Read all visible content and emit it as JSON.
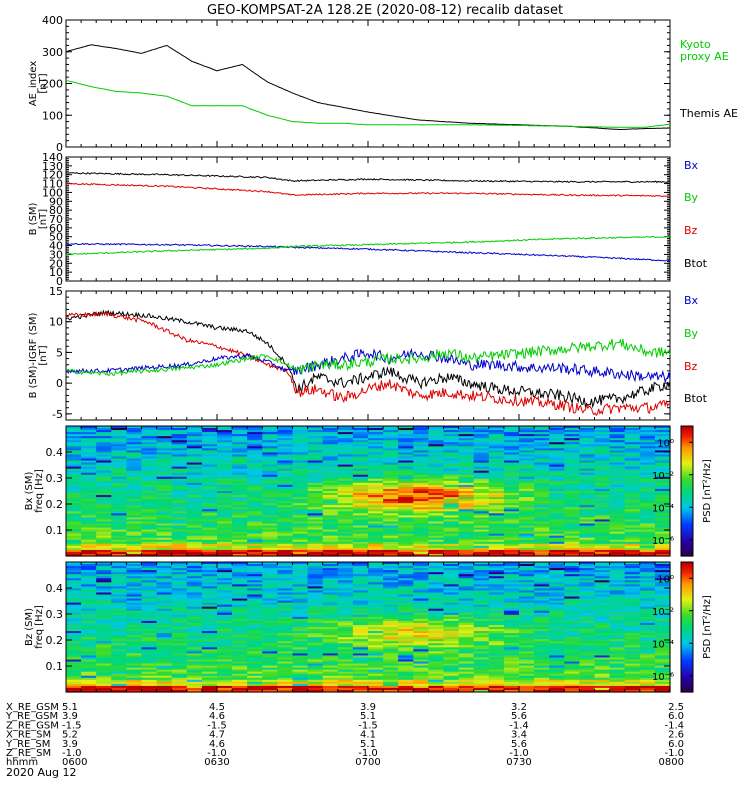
{
  "title": "GEO-KOMPSAT-2A 128.2E (2020-08-12) recalib dataset",
  "chart_data": [
    {
      "type": "line",
      "id": "ae",
      "ylabel": [
        "AE_index",
        "[nT]"
      ],
      "ylim": [
        0,
        400
      ],
      "yticks": [
        "0",
        "100",
        "200",
        "300",
        "400"
      ],
      "legend": [
        {
          "label": "Kyoto",
          "color": "#00cc00"
        },
        {
          "label": "proxy AE",
          "color": "#00cc00"
        },
        {
          "label": "Themis AE",
          "color": "#000000"
        }
      ],
      "x": [
        0,
        5,
        10,
        15,
        20,
        25,
        30,
        35,
        40,
        45,
        50,
        55,
        60,
        70,
        80,
        90,
        100,
        110,
        115,
        120
      ],
      "series": [
        {
          "name": "Themis AE",
          "color": "#000000",
          "values": [
            300,
            322,
            310,
            295,
            320,
            270,
            240,
            260,
            205,
            170,
            140,
            125,
            110,
            85,
            75,
            70,
            65,
            55,
            58,
            60
          ]
        },
        {
          "name": "Kyoto proxy AE",
          "color": "#00cc00",
          "values": [
            210,
            190,
            175,
            170,
            160,
            130,
            130,
            130,
            100,
            80,
            75,
            75,
            70,
            70,
            70,
            68,
            65,
            62,
            62,
            72
          ]
        }
      ]
    },
    {
      "type": "line",
      "id": "bsm",
      "ylabel": [
        "B (SM)",
        "[nT]"
      ],
      "ylim": [
        0,
        140
      ],
      "yticks": [
        "0",
        "10",
        "20",
        "30",
        "40",
        "50",
        "60",
        "70",
        "80",
        "90",
        "100",
        "110",
        "120",
        "130",
        "140"
      ],
      "legend": [
        {
          "label": "Bx",
          "color": "#0000cc"
        },
        {
          "label": "By",
          "color": "#00cc00"
        },
        {
          "label": "Bz",
          "color": "#dd0000"
        },
        {
          "label": "Btot",
          "color": "#000000"
        }
      ],
      "x": [
        0,
        20,
        40,
        45,
        60,
        80,
        100,
        120
      ],
      "series": [
        {
          "name": "Btot",
          "color": "#000000",
          "values": [
            122,
            120,
            117,
            113,
            115,
            113,
            112,
            112
          ]
        },
        {
          "name": "Bz",
          "color": "#dd0000",
          "values": [
            110,
            107,
            101,
            97,
            99,
            99,
            97,
            96
          ]
        },
        {
          "name": "Bx",
          "color": "#0000cc",
          "values": [
            42,
            41,
            39,
            38,
            36,
            32,
            28,
            23
          ]
        },
        {
          "name": "By",
          "color": "#00cc00",
          "values": [
            30,
            34,
            37,
            39,
            41,
            44,
            48,
            50
          ]
        }
      ]
    },
    {
      "type": "line",
      "id": "dbsm",
      "ylabel": [
        "B (SM)-IGRF (SM)",
        "[nT]"
      ],
      "ylim": [
        -6,
        15
      ],
      "yticks": [
        "-5",
        "0",
        "5",
        "10",
        "15"
      ],
      "legend": [
        {
          "label": "Bx",
          "color": "#0000cc"
        },
        {
          "label": "By",
          "color": "#00cc00"
        },
        {
          "label": "Bz",
          "color": "#dd0000"
        },
        {
          "label": "Btot",
          "color": "#000000"
        }
      ],
      "x": [
        0,
        8,
        16,
        24,
        30,
        36,
        40,
        44,
        46,
        50,
        55,
        60,
        64,
        70,
        76,
        80,
        86,
        92,
        98,
        104,
        110,
        116,
        120
      ],
      "series": [
        {
          "name": "Btot",
          "color": "#000000",
          "values": [
            10.5,
            11.5,
            11,
            10,
            9,
            8.5,
            6.5,
            3,
            -1,
            1,
            0,
            1,
            2,
            0,
            1,
            0,
            -1,
            -1.5,
            -2,
            -3,
            -2.5,
            -1,
            0
          ]
        },
        {
          "name": "Bz",
          "color": "#dd0000",
          "values": [
            11,
            11.3,
            10,
            7,
            6,
            4.5,
            3,
            2,
            -1.5,
            -1,
            -2.5,
            -1,
            0,
            -2,
            -1.5,
            -2,
            -2.5,
            -3,
            -3.5,
            -4.5,
            -4,
            -4,
            -3.5
          ]
        },
        {
          "name": "Bx",
          "color": "#0000cc",
          "values": [
            2,
            2,
            2.5,
            3,
            4,
            4.5,
            3.5,
            2,
            2,
            3,
            4,
            5,
            4,
            5,
            4,
            3,
            3,
            2.5,
            2.5,
            2,
            1.5,
            1,
            1
          ]
        },
        {
          "name": "By",
          "color": "#00cc00",
          "values": [
            2,
            1.5,
            2,
            2.5,
            3,
            4,
            4.5,
            3,
            2,
            3,
            3,
            3.5,
            4,
            4,
            5,
            4,
            4.5,
            5,
            5.5,
            6,
            6.5,
            5,
            5
          ]
        }
      ]
    },
    {
      "type": "heatmap",
      "id": "bxpsd",
      "ylabel": [
        "Bx (SM)",
        "freq [Hz]"
      ],
      "ylim": [
        0,
        0.5
      ],
      "yticks": [
        "0.1",
        "0.2",
        "0.3",
        "0.4"
      ],
      "colorbar_label": "PSD [nT²/Hz]",
      "colorbar_ticks": [
        "10⁰",
        "10⁻²",
        "10⁻⁴",
        "10⁻⁶"
      ],
      "colorbar_range": [
        -7,
        1
      ]
    },
    {
      "type": "heatmap",
      "id": "bzpsd",
      "ylabel": [
        "Bz (SM)",
        "freq [Hz]"
      ],
      "ylim": [
        0,
        0.5
      ],
      "yticks": [
        "0.1",
        "0.2",
        "0.3",
        "0.4"
      ],
      "colorbar_label": "PSD [nT²/Hz]",
      "colorbar_ticks": [
        "10⁰",
        "10⁻²",
        "10⁻⁴",
        "10⁻⁶"
      ],
      "colorbar_range": [
        -7,
        1
      ]
    }
  ],
  "time_axis": {
    "xlim_minutes": [
      0,
      120
    ],
    "rows": [
      {
        "label": "X_RE_GSM",
        "values": [
          "5.1",
          "4.5",
          "3.9",
          "3.2",
          "2.5"
        ]
      },
      {
        "label": "Y_RE_GSM",
        "values": [
          "3.9",
          "4.6",
          "5.1",
          "5.6",
          "6.0"
        ]
      },
      {
        "label": "Z_RE_GSM",
        "values": [
          "-1.5",
          "-1.5",
          "-1.5",
          "-1.4",
          "-1.4"
        ]
      },
      {
        "label": "X_RE_SM",
        "values": [
          "5.2",
          "4.7",
          "4.1",
          "3.4",
          "2.6"
        ]
      },
      {
        "label": "Y_RE_SM",
        "values": [
          "3.9",
          "4.6",
          "5.1",
          "5.6",
          "6.0"
        ]
      },
      {
        "label": "Z_RE_SM",
        "values": [
          "-1.0",
          "-1.0",
          "-1.0",
          "-1.0",
          "-1.0"
        ]
      },
      {
        "label": "hhmm",
        "values": [
          "0600",
          "0630",
          "0700",
          "0730",
          "0800"
        ]
      }
    ],
    "date": "2020 Aug 12"
  }
}
